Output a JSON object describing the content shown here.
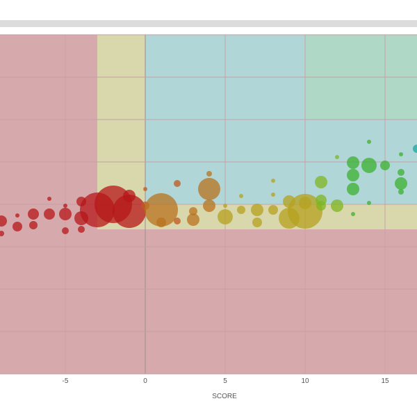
{
  "chart_data": {
    "type": "scatter",
    "xlabel": "SCORE",
    "x_ticks": [
      -5,
      0,
      5,
      10,
      15
    ],
    "xlim": [
      -9,
      17
    ],
    "grid": true,
    "zones": [
      {
        "name": "red",
        "color": "#d6a9ac"
      },
      {
        "name": "yellow",
        "color": "#d9d8ad"
      },
      {
        "name": "blue",
        "color": "#b0d6d8"
      },
      {
        "name": "green",
        "color": "#afd8c6"
      }
    ],
    "points": [
      {
        "x": -9,
        "y": -0.3,
        "size": 8,
        "color": "#b5171a"
      },
      {
        "x": -9,
        "y": -0.75,
        "size": 4,
        "color": "#b5171a"
      },
      {
        "x": -8,
        "y": -0.5,
        "size": 7,
        "color": "#b5171a"
      },
      {
        "x": -8,
        "y": -0.1,
        "size": 3,
        "color": "#b5171a"
      },
      {
        "x": -7,
        "y": -0.45,
        "size": 6,
        "color": "#b5171a"
      },
      {
        "x": -7,
        "y": -0.05,
        "size": 8,
        "color": "#b5171a"
      },
      {
        "x": -6,
        "y": -0.05,
        "size": 8,
        "color": "#b5171a"
      },
      {
        "x": -6,
        "y": 0.5,
        "size": 3,
        "color": "#b5171a"
      },
      {
        "x": -5,
        "y": -0.65,
        "size": 5,
        "color": "#b5171a"
      },
      {
        "x": -5,
        "y": -0.05,
        "size": 9,
        "color": "#b5171a"
      },
      {
        "x": -5,
        "y": 0.25,
        "size": 3,
        "color": "#b5171a"
      },
      {
        "x": -4,
        "y": -0.6,
        "size": 5,
        "color": "#b5171a"
      },
      {
        "x": -4,
        "y": -0.2,
        "size": 10,
        "color": "#b5171a"
      },
      {
        "x": -4,
        "y": 0.4,
        "size": 7,
        "color": "#b5171a"
      },
      {
        "x": -3,
        "y": 0.1,
        "size": 25,
        "color": "#b5171a"
      },
      {
        "x": -2,
        "y": 0.3,
        "size": 27,
        "color": "#b5171a"
      },
      {
        "x": -1,
        "y": 0.05,
        "size": 24,
        "color": "#b5171a"
      },
      {
        "x": -1,
        "y": 0.6,
        "size": 9,
        "color": "#b5171a"
      },
      {
        "x": 0,
        "y": 0.25,
        "size": 6,
        "color": "#c0581f"
      },
      {
        "x": 0,
        "y": 0.85,
        "size": 3,
        "color": "#c0581f"
      },
      {
        "x": 1,
        "y": 0.1,
        "size": 24,
        "color": "#b8731f"
      },
      {
        "x": 1,
        "y": -0.35,
        "size": 7,
        "color": "#b8731f"
      },
      {
        "x": 2,
        "y": 1.05,
        "size": 5,
        "color": "#c0581f"
      },
      {
        "x": 2,
        "y": -0.3,
        "size": 5,
        "color": "#c0581f"
      },
      {
        "x": 3,
        "y": -0.25,
        "size": 9,
        "color": "#b8731f"
      },
      {
        "x": 3,
        "y": 0.05,
        "size": 6,
        "color": "#b8731f"
      },
      {
        "x": 4,
        "y": 0.85,
        "size": 16,
        "color": "#b8731f"
      },
      {
        "x": 4,
        "y": 0.25,
        "size": 9,
        "color": "#b8731f"
      },
      {
        "x": 4,
        "y": 1.4,
        "size": 4,
        "color": "#b8731f"
      },
      {
        "x": 5,
        "y": -0.15,
        "size": 11,
        "color": "#b5a21f"
      },
      {
        "x": 5,
        "y": 0.25,
        "size": 3,
        "color": "#b5a21f"
      },
      {
        "x": 6,
        "y": 0.1,
        "size": 6,
        "color": "#b5a21f"
      },
      {
        "x": 6,
        "y": 0.6,
        "size": 3,
        "color": "#b5a21f"
      },
      {
        "x": 7,
        "y": -0.35,
        "size": 7,
        "color": "#b5a21f"
      },
      {
        "x": 7,
        "y": 0.1,
        "size": 9,
        "color": "#b5a21f"
      },
      {
        "x": 8,
        "y": 0.1,
        "size": 7,
        "color": "#b5a21f"
      },
      {
        "x": 8,
        "y": 0.65,
        "size": 3,
        "color": "#b5a21f"
      },
      {
        "x": 8,
        "y": 1.15,
        "size": 3,
        "color": "#b5a21f"
      },
      {
        "x": 9,
        "y": -0.2,
        "size": 15,
        "color": "#b5a21f"
      },
      {
        "x": 9,
        "y": 0.4,
        "size": 9,
        "color": "#b5a21f"
      },
      {
        "x": 10,
        "y": 0.05,
        "size": 25,
        "color": "#b5a21f"
      },
      {
        "x": 10,
        "y": 0.35,
        "size": 9,
        "color": "#b5a21f"
      },
      {
        "x": 11,
        "y": 0.45,
        "size": 8,
        "color": "#7fb521"
      },
      {
        "x": 11,
        "y": 0.25,
        "size": 7,
        "color": "#7fb521"
      },
      {
        "x": 11,
        "y": 1.1,
        "size": 9,
        "color": "#7fb521"
      },
      {
        "x": 12,
        "y": 0.25,
        "size": 9,
        "color": "#7fb521"
      },
      {
        "x": 12,
        "y": 2.0,
        "size": 3,
        "color": "#7fb521"
      },
      {
        "x": 13,
        "y": 0.85,
        "size": 9,
        "color": "#3bb02e"
      },
      {
        "x": 13,
        "y": 1.8,
        "size": 9,
        "color": "#3bb02e"
      },
      {
        "x": 13,
        "y": 1.35,
        "size": 9,
        "color": "#3bb02e"
      },
      {
        "x": 13,
        "y": -0.05,
        "size": 3,
        "color": "#3bb02e"
      },
      {
        "x": 14,
        "y": 1.7,
        "size": 11,
        "color": "#3bb02e"
      },
      {
        "x": 14,
        "y": 2.55,
        "size": 3,
        "color": "#3bb02e"
      },
      {
        "x": 14,
        "y": 0.35,
        "size": 3,
        "color": "#3bb02e"
      },
      {
        "x": 15,
        "y": 1.7,
        "size": 7,
        "color": "#3bb02e"
      },
      {
        "x": 16,
        "y": 1.05,
        "size": 9,
        "color": "#3bb02e"
      },
      {
        "x": 16,
        "y": 1.45,
        "size": 5,
        "color": "#3bb02e"
      },
      {
        "x": 16,
        "y": 0.75,
        "size": 4,
        "color": "#3bb02e"
      },
      {
        "x": 16,
        "y": 2.1,
        "size": 3,
        "color": "#3bb02e"
      },
      {
        "x": 17,
        "y": 2.3,
        "size": 6,
        "color": "#1aa8a2"
      }
    ]
  }
}
